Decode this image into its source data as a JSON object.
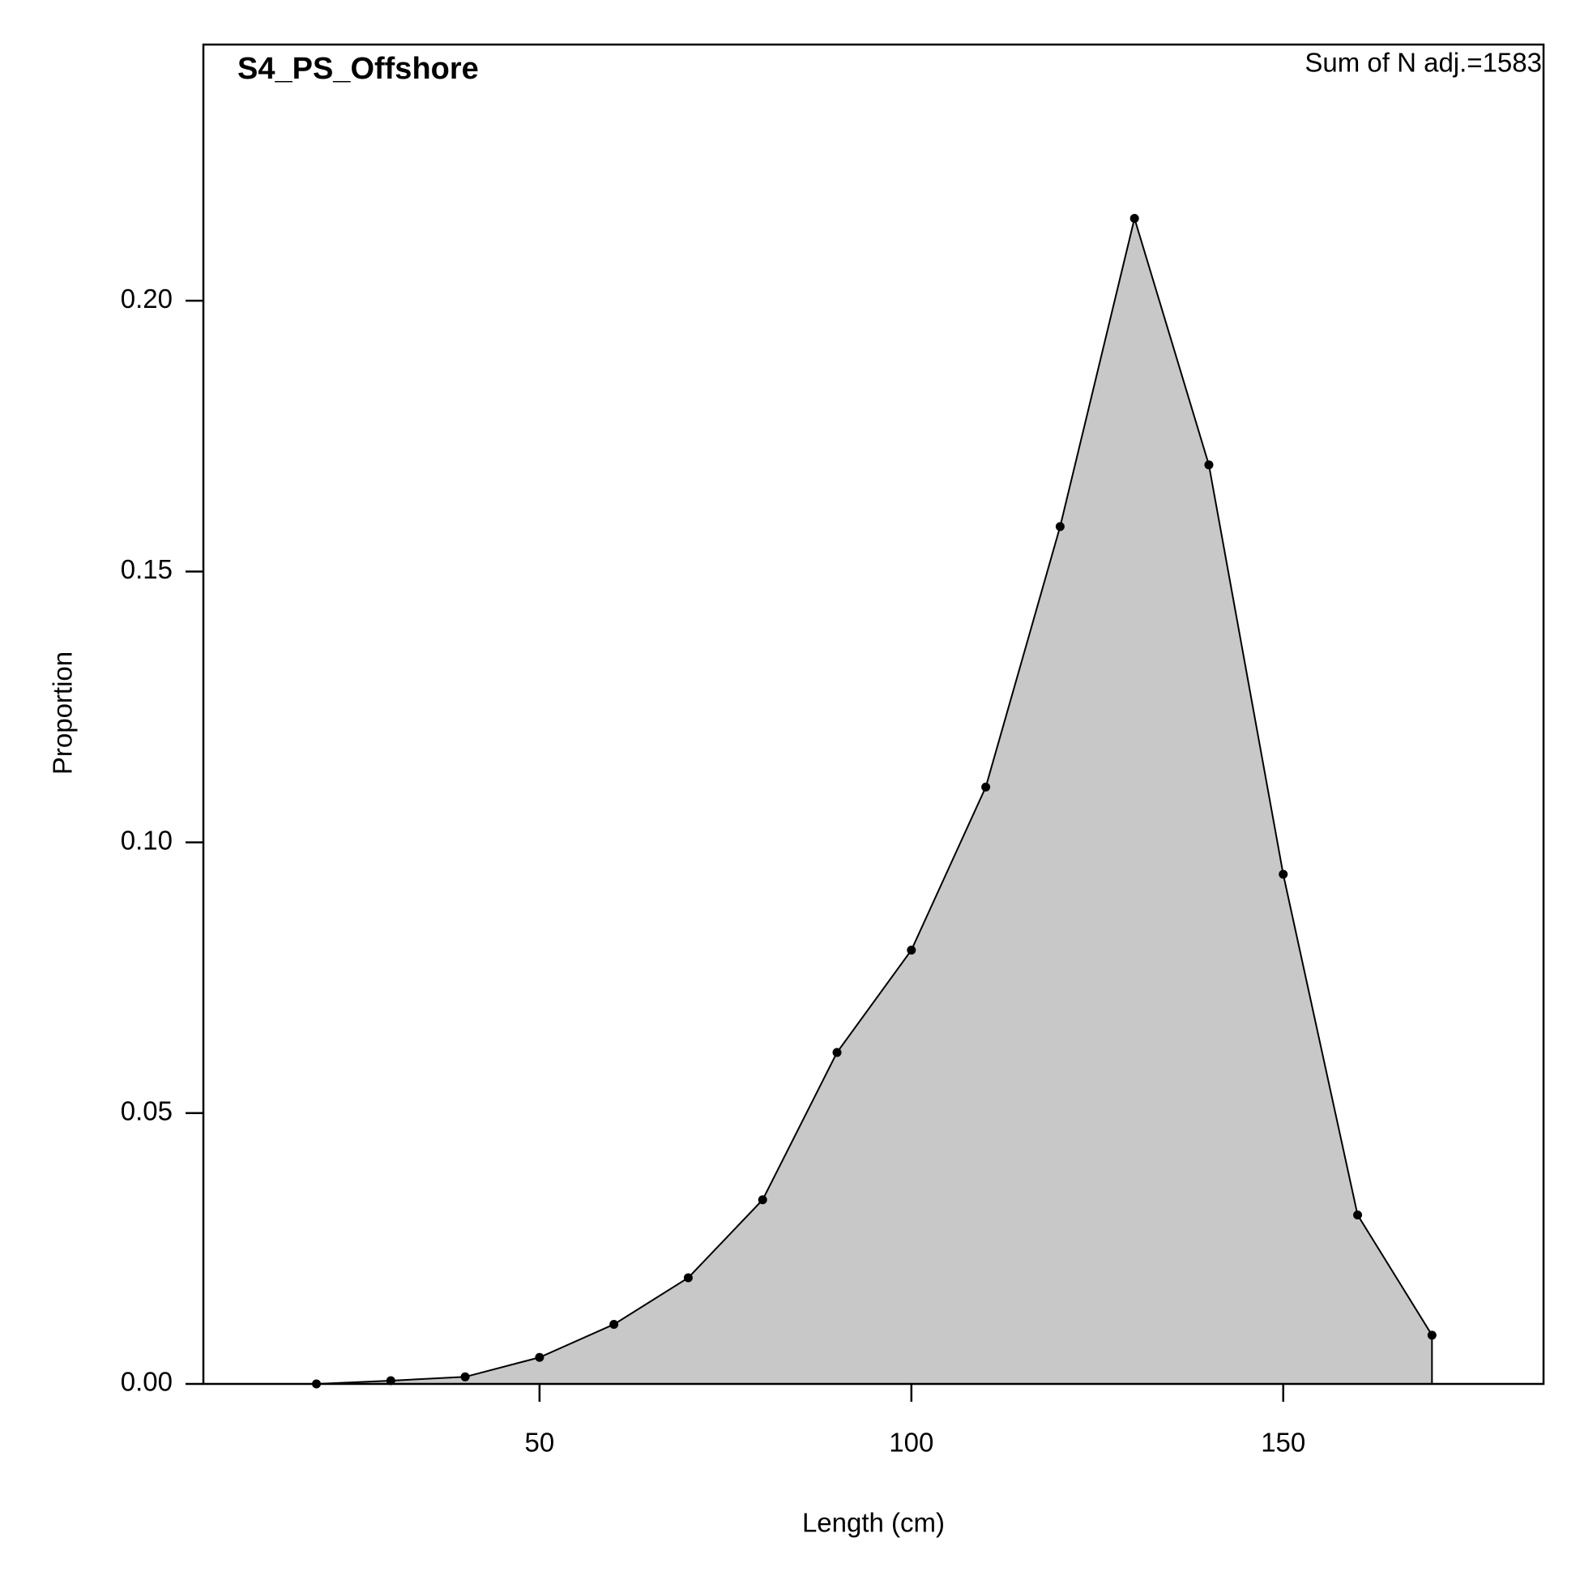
{
  "chart_data": {
    "type": "area",
    "title": "S4_PS_Offshore",
    "annotation": "Sum of N adj.=1583",
    "x_label": "Length (cm)",
    "y_label": "Proportion",
    "x": [
      20,
      30,
      40,
      50,
      60,
      70,
      80,
      90,
      100,
      110,
      120,
      130,
      140,
      150,
      160,
      170
    ],
    "series": [
      {
        "name": "Proportion",
        "color": "#c8c8c8",
        "values": [
          0,
          0.0006,
          0.0013,
          0.0049,
          0.011,
          0.0196,
          0.034,
          0.0612,
          0.0801,
          0.1102,
          0.1583,
          0.2152,
          0.1697,
          0.0941,
          0.0312,
          0.009
        ]
      }
    ],
    "xlim": [
      4.8,
      185
    ],
    "ylim": [
      0,
      0.2473
    ],
    "xticks": [
      50,
      100,
      150
    ],
    "yticks": [
      {
        "value": 0,
        "label": "0.00"
      },
      {
        "value": 0.05,
        "label": "0.05"
      },
      {
        "value": 0.1,
        "label": "0.10"
      },
      {
        "value": 0.15,
        "label": "0.15"
      },
      {
        "value": 0.2,
        "label": "0.20"
      }
    ]
  }
}
